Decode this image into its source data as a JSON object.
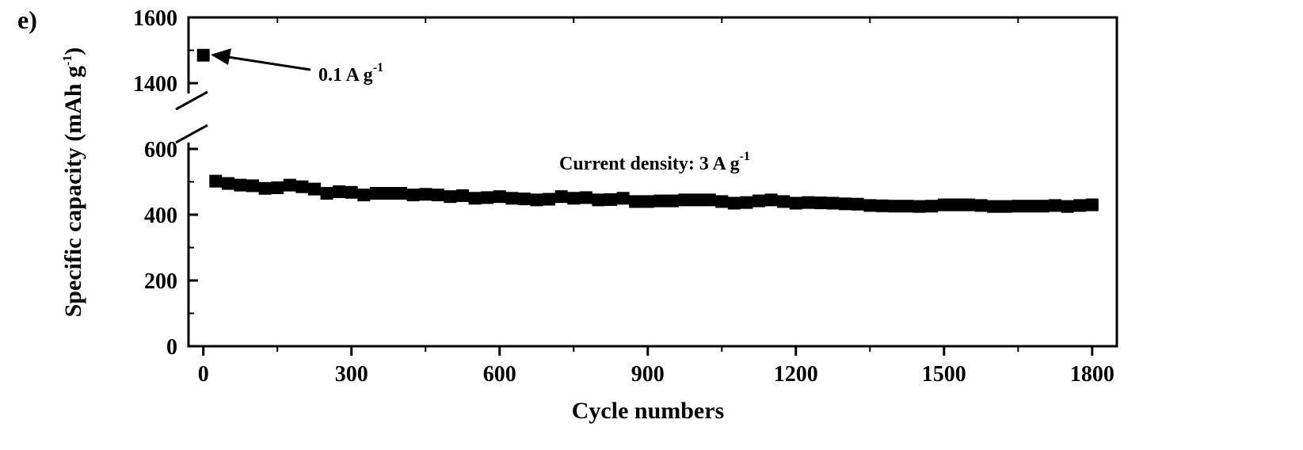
{
  "panel_label": "e)",
  "chart_data": {
    "type": "scatter",
    "xlabel": "Cycle numbers",
    "ylabel": "Specific capacity (mAh g-1)",
    "ylabel_parts": {
      "main": "Specific capacity (mAh g",
      "sup": "-1",
      "end": ")"
    },
    "xlim": [
      -30,
      1850
    ],
    "ylim_display": [
      0,
      1600
    ],
    "y_axis_break": {
      "from": 600,
      "to": 1400
    },
    "x_ticks": [
      0,
      300,
      600,
      900,
      1200,
      1500,
      1800
    ],
    "x_tick_labels": [
      "0",
      "300",
      "600",
      "900",
      "1200",
      "1500",
      "1800"
    ],
    "y_ticks": [
      0,
      200,
      400,
      600,
      1400,
      1600
    ],
    "y_tick_labels": [
      "0",
      "200",
      "400",
      "600",
      "1400",
      "1600"
    ],
    "grid": false,
    "annotations": [
      {
        "text": "0.1 A g",
        "sup": "-1",
        "points_to": [
          0,
          1485
        ]
      },
      {
        "text": "Current density: 3 A g",
        "sup": "-1"
      }
    ],
    "series": [
      {
        "marker": "square",
        "color": "#000000",
        "x": [
          0
        ],
        "y": [
          1485
        ]
      },
      {
        "marker": "square",
        "color": "#000000",
        "x": [
          25,
          50,
          75,
          100,
          125,
          150,
          175,
          200,
          225,
          250,
          275,
          300,
          325,
          350,
          375,
          400,
          425,
          450,
          475,
          500,
          525,
          550,
          575,
          600,
          625,
          650,
          675,
          700,
          725,
          750,
          775,
          800,
          825,
          850,
          875,
          900,
          925,
          950,
          975,
          1000,
          1025,
          1050,
          1075,
          1100,
          1125,
          1150,
          1175,
          1200,
          1225,
          1250,
          1275,
          1300,
          1325,
          1350,
          1375,
          1400,
          1425,
          1450,
          1475,
          1500,
          1525,
          1550,
          1575,
          1600,
          1625,
          1650,
          1675,
          1700,
          1725,
          1750,
          1775,
          1800
        ],
        "y": [
          502,
          495,
          490,
          488,
          480,
          482,
          490,
          485,
          478,
          465,
          470,
          468,
          460,
          465,
          465,
          465,
          460,
          462,
          460,
          455,
          458,
          450,
          452,
          455,
          450,
          448,
          445,
          447,
          455,
          450,
          452,
          445,
          446,
          450,
          440,
          440,
          442,
          442,
          445,
          445,
          445,
          440,
          435,
          437,
          442,
          445,
          440,
          435,
          437,
          436,
          435,
          433,
          432,
          428,
          427,
          426,
          426,
          425,
          426,
          430,
          430,
          430,
          428,
          425,
          425,
          426,
          426,
          426,
          428,
          425,
          428,
          430
        ]
      }
    ]
  }
}
